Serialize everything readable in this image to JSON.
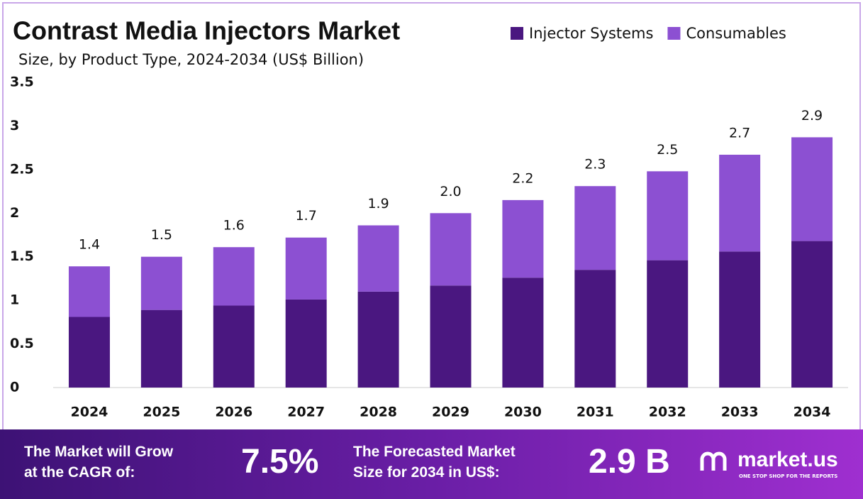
{
  "chart_data": {
    "type": "stacked_bar",
    "title": "Contrast Media Injectors Market",
    "subtitle": "Size, by Product Type, 2024-2034 (US$ Billion)",
    "categories": [
      "2024",
      "2025",
      "2026",
      "2027",
      "2028",
      "2029",
      "2030",
      "2031",
      "2032",
      "2033",
      "2034"
    ],
    "series": [
      {
        "name": "Injector Systems",
        "color": "#4a1780",
        "values": [
          0.81,
          0.89,
          0.94,
          1.01,
          1.1,
          1.17,
          1.26,
          1.35,
          1.46,
          1.56,
          1.68
        ]
      },
      {
        "name": "Consumables",
        "color": "#8c50d2",
        "values": [
          0.58,
          0.61,
          0.67,
          0.71,
          0.76,
          0.83,
          0.89,
          0.96,
          1.02,
          1.11,
          1.19
        ]
      }
    ],
    "totals": [
      1.39,
      1.5,
      1.61,
      1.72,
      1.86,
      2.0,
      2.15,
      2.31,
      2.48,
      2.67,
      2.87
    ],
    "total_labels": [
      "1.4",
      "1.5",
      "1.6",
      "1.7",
      "1.9",
      "2.0",
      "2.2",
      "2.3",
      "2.5",
      "2.7",
      "2.9"
    ],
    "ylim": [
      0,
      3.5
    ],
    "yticks": [
      0,
      0.5,
      1,
      1.5,
      2,
      2.5,
      3,
      3.5
    ],
    "grid": false,
    "legend": "top-right"
  },
  "footer": {
    "cagr_text": [
      "The Market will Grow",
      "at the CAGR of:"
    ],
    "cagr_value": "7.5%",
    "forecast_text": [
      "The Forecasted Market",
      "Size for 2034 in US$:"
    ],
    "forecast_value": "2.9 B",
    "brand": "market.us",
    "tagline": "ONE STOP SHOP FOR THE REPORTS"
  }
}
